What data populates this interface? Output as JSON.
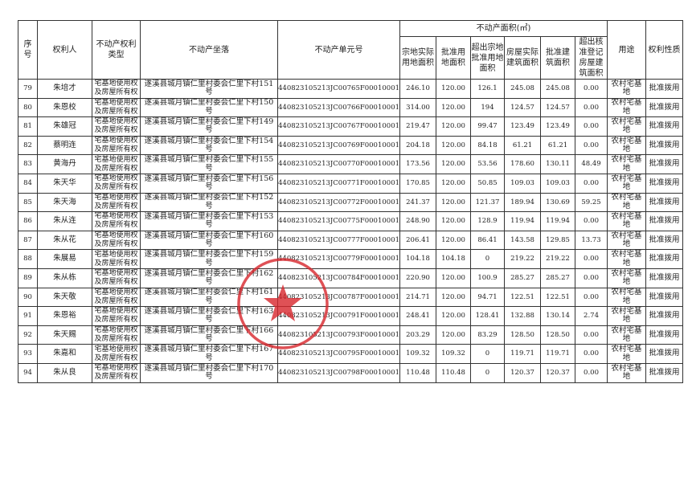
{
  "header": {
    "seq": "序号",
    "owner": "权利人",
    "right_type": "不动产权利类型",
    "location": "不动产坐落",
    "unit_no": "不动产单元号",
    "area_group": "不动产面积(㎡)",
    "actual_land": "宗地实际用地面积",
    "approved_land": "批准用地面积",
    "excess_land": "超出宗地批准用地面积",
    "actual_building": "房屋实际建筑面积",
    "approved_building": "批准建筑面积",
    "excess_building": "超出核准登记房屋建筑面积",
    "usage": "用途",
    "right_nature": "权利性质"
  },
  "rows": [
    [
      "79",
      "朱培才",
      "宅基地使用权及房屋所有权",
      "遂溪县城月镇仁里村委会仁里下村151号",
      "440823105213JC00765F00010001",
      "246.10",
      "120.00",
      "126.1",
      "245.08",
      "245.08",
      "0.00",
      "农村宅基地",
      "批准拨用"
    ],
    [
      "80",
      "朱恩校",
      "宅基地使用权及房屋所有权",
      "遂溪县城月镇仁里村委会仁里下村150号",
      "440823105213JC00766F00010001",
      "314.00",
      "120.00",
      "194",
      "124.57",
      "124.57",
      "0.00",
      "农村宅基地",
      "批准拨用"
    ],
    [
      "81",
      "朱雄冠",
      "宅基地使用权及房屋所有权",
      "遂溪县城月镇仁里村委会仁里下村149号",
      "440823105213JC00767F00010001",
      "219.47",
      "120.00",
      "99.47",
      "123.49",
      "123.49",
      "0.00",
      "农村宅基地",
      "批准拨用"
    ],
    [
      "82",
      "蔡明连",
      "宅基地使用权及房屋所有权",
      "遂溪县城月镇仁里村委会仁里下村154号",
      "440823105213JC00769F00010001",
      "204.18",
      "120.00",
      "84.18",
      "61.21",
      "61.21",
      "0.00",
      "农村宅基地",
      "批准拨用"
    ],
    [
      "83",
      "黄海丹",
      "宅基地使用权及房屋所有权",
      "遂溪县城月镇仁里村委会仁里下村155号",
      "440823105213JC00770F00010001",
      "173.56",
      "120.00",
      "53.56",
      "178.60",
      "130.11",
      "48.49",
      "农村宅基地",
      "批准拨用"
    ],
    [
      "84",
      "朱天华",
      "宅基地使用权及房屋所有权",
      "遂溪县城月镇仁里村委会仁里下村156号",
      "440823105213JC00771F00010001",
      "170.85",
      "120.00",
      "50.85",
      "109.03",
      "109.03",
      "0.00",
      "农村宅基地",
      "批准拨用"
    ],
    [
      "85",
      "朱天海",
      "宅基地使用权及房屋所有权",
      "遂溪县城月镇仁里村委会仁里下村152号",
      "440823105213JC00772F00010001",
      "241.37",
      "120.00",
      "121.37",
      "189.94",
      "130.69",
      "59.25",
      "农村宅基地",
      "批准拨用"
    ],
    [
      "86",
      "朱从连",
      "宅基地使用权及房屋所有权",
      "遂溪县城月镇仁里村委会仁里下村153号",
      "440823105213JC00775F00010001",
      "248.90",
      "120.00",
      "128.9",
      "119.94",
      "119.94",
      "0.00",
      "农村宅基地",
      "批准拨用"
    ],
    [
      "87",
      "朱从花",
      "宅基地使用权及房屋所有权",
      "遂溪县城月镇仁里村委会仁里下村160号",
      "440823105213JC00777F00010001",
      "206.41",
      "120.00",
      "86.41",
      "143.58",
      "129.85",
      "13.73",
      "农村宅基地",
      "批准拨用"
    ],
    [
      "88",
      "朱展易",
      "宅基地使用权及房屋所有权",
      "遂溪县城月镇仁里村委会仁里下村159号",
      "440823105213JC00779F00010001",
      "104.18",
      "104.18",
      "0",
      "219.22",
      "219.22",
      "0.00",
      "农村宅基地",
      "批准拨用"
    ],
    [
      "89",
      "朱从栋",
      "宅基地使用权及房屋所有权",
      "遂溪县城月镇仁里村委会仁里下村162号",
      "440823105213JC00784F00010001",
      "220.90",
      "120.00",
      "100.9",
      "285.27",
      "285.27",
      "0.00",
      "农村宅基地",
      "批准拨用"
    ],
    [
      "90",
      "朱天敬",
      "宅基地使用权及房屋所有权",
      "遂溪县城月镇仁里村委会仁里下村161号",
      "440823105213JC00787F00010001",
      "214.71",
      "120.00",
      "94.71",
      "122.51",
      "122.51",
      "0.00",
      "农村宅基地",
      "批准拨用"
    ],
    [
      "91",
      "朱恩裕",
      "宅基地使用权及房屋所有权",
      "遂溪县城月镇仁里村委会仁里下村163号",
      "440823105213JC00791F00010001",
      "248.41",
      "120.00",
      "128.41",
      "132.88",
      "130.14",
      "2.74",
      "农村宅基地",
      "批准拨用"
    ],
    [
      "92",
      "朱天赐",
      "宅基地使用权及房屋所有权",
      "遂溪县城月镇仁里村委会仁里下村166号",
      "440823105213JC00793F00010001",
      "203.29",
      "120.00",
      "83.29",
      "128.50",
      "128.50",
      "0.00",
      "农村宅基地",
      "批准拨用"
    ],
    [
      "93",
      "朱嘉和",
      "宅基地使用权及房屋所有权",
      "遂溪县城月镇仁里村委会仁里下村167号",
      "440823105213JC00795F00010001",
      "109.32",
      "109.32",
      "0",
      "119.71",
      "119.71",
      "0.00",
      "农村宅基地",
      "批准拨用"
    ],
    [
      "94",
      "朱从良",
      "宅基地使用权及房屋所有权",
      "遂溪县城月镇仁里村委会仁里下村170号",
      "440823105213JC00798F00010001",
      "110.48",
      "110.48",
      "0",
      "120.37",
      "120.37",
      "0.00",
      "农村宅基地",
      "批准拨用"
    ]
  ],
  "stamp_color": "#d8262c"
}
